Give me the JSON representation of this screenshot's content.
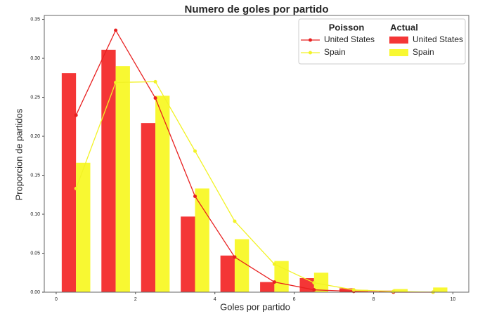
{
  "chart_data": {
    "type": "histogram",
    "title": "Numero de goles por partido",
    "xlabel": "Goles por partido",
    "ylabel": "Proporcion de partidos",
    "bins": [
      0,
      1,
      2,
      3,
      4,
      5,
      6,
      7,
      8,
      9,
      10
    ],
    "series": [
      {
        "name": "United States",
        "color": "#f43636",
        "values": [
          0.281,
          0.311,
          0.217,
          0.097,
          0.047,
          0.013,
          0.018,
          0.005,
          0.002,
          0
        ]
      },
      {
        "name": "Spain",
        "color": "#f8f832",
        "values": [
          0.166,
          0.29,
          0.252,
          0.133,
          0.068,
          0.04,
          0.025,
          0.003,
          0.004,
          0.006
        ]
      }
    ],
    "lines": [
      {
        "name": "United States",
        "color": "#e82020",
        "x": [
          0.5,
          1.5,
          2.5,
          3.5,
          4.5,
          5.5,
          6.5,
          7.5,
          8.5,
          9.5
        ],
        "values": [
          0.227,
          0.336,
          0.249,
          0.123,
          0.045,
          0.013,
          0.003,
          0.001,
          0,
          0
        ]
      },
      {
        "name": "Spain",
        "color": "#f2f226",
        "x": [
          0.5,
          1.5,
          2.5,
          3.5,
          4.5,
          5.5,
          6.5,
          7.5,
          8.5,
          9.5
        ],
        "values": [
          0.133,
          0.269,
          0.27,
          0.181,
          0.091,
          0.036,
          0.012,
          0.003,
          0.001,
          0
        ]
      }
    ],
    "line_legend_title": "Poisson",
    "bar_legend_title": "Actual",
    "xlim": [
      -0.3,
      10.4
    ],
    "ylim": [
      0,
      0.355
    ],
    "xticks": [
      0,
      2,
      4,
      6,
      8,
      10
    ],
    "yticks": [
      {
        "value": 0,
        "label": "0.00"
      },
      {
        "value": 0.05,
        "label": "0.05"
      },
      {
        "value": 0.1,
        "label": "0.10"
      },
      {
        "value": 0.15,
        "label": "0.15"
      },
      {
        "value": 0.2,
        "label": "0.20"
      },
      {
        "value": 0.25,
        "label": "0.25"
      },
      {
        "value": 0.3,
        "label": "0.30"
      },
      {
        "value": 0.35,
        "label": "0.35"
      }
    ],
    "grid": false
  }
}
